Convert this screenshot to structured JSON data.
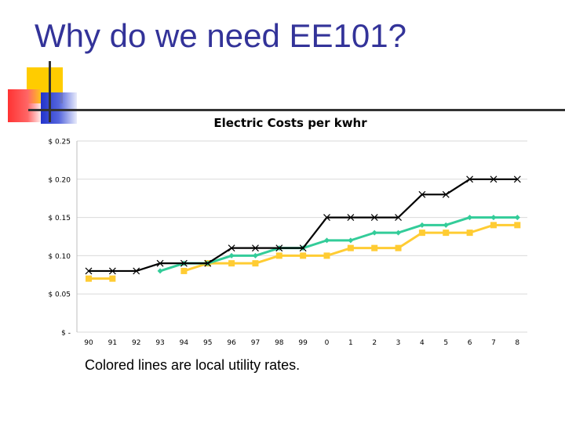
{
  "slide": {
    "title": "Why do we need EE101?",
    "caption": "Colored lines are local utility rates."
  },
  "chart_data": {
    "type": "line",
    "title": "Electric Costs per kwhr",
    "categories": [
      "90",
      "91",
      "92",
      "93",
      "94",
      "95",
      "96",
      "97",
      "98",
      "99",
      "0",
      "1",
      "2",
      "3",
      "4",
      "5",
      "6",
      "7",
      "8"
    ],
    "y_ticks": [
      {
        "value": 0.25,
        "label": "$ 0.25"
      },
      {
        "value": 0.2,
        "label": "$ 0.20"
      },
      {
        "value": 0.15,
        "label": "$ 0.15"
      },
      {
        "value": 0.1,
        "label": "$ 0.10"
      },
      {
        "value": 0.05,
        "label": "$ 0.05"
      },
      {
        "value": 0.0,
        "label": "$ -"
      }
    ],
    "ylim": [
      0,
      0.25
    ],
    "grid": true,
    "series": [
      {
        "color": "#000000",
        "marker": "x",
        "values": [
          0.08,
          0.08,
          0.08,
          0.09,
          0.09,
          0.09,
          0.11,
          0.11,
          0.11,
          0.11,
          0.15,
          0.15,
          0.15,
          0.15,
          0.18,
          0.18,
          0.2,
          0.2,
          0.2
        ]
      },
      {
        "color": "#33cc99",
        "marker": "diamond",
        "values": [
          null,
          null,
          null,
          0.08,
          0.09,
          0.09,
          0.1,
          0.1,
          0.11,
          0.11,
          0.12,
          0.12,
          0.13,
          0.13,
          0.14,
          0.14,
          0.15,
          0.15,
          0.15
        ]
      },
      {
        "color": "#ffcc33",
        "marker": "square",
        "values": [
          0.07,
          0.07,
          null,
          null,
          0.08,
          0.09,
          0.09,
          0.09,
          0.1,
          0.1,
          0.1,
          0.11,
          0.11,
          0.11,
          0.13,
          0.13,
          0.13,
          0.14,
          0.14
        ]
      }
    ]
  }
}
